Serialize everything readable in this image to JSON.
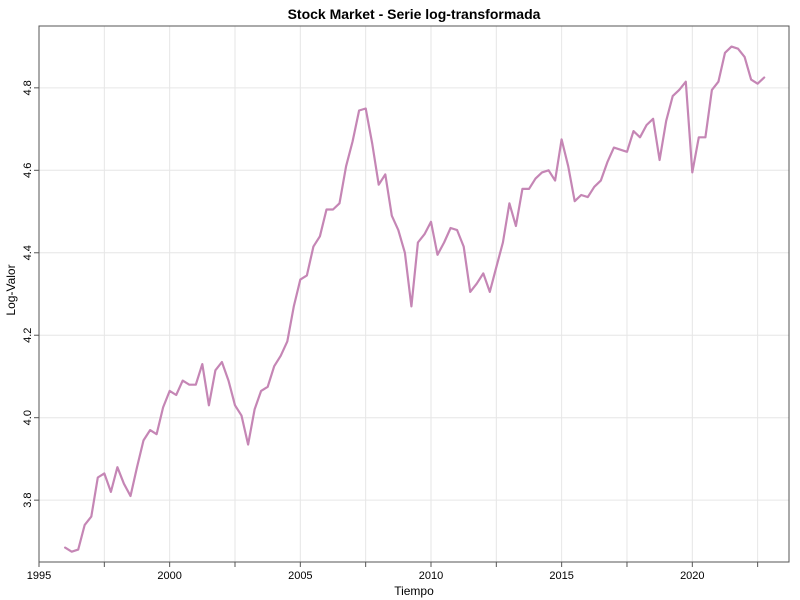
{
  "chart_data": {
    "type": "line",
    "title": "Stock Market - Serie log-transformada",
    "xlabel": "Tiempo",
    "ylabel": "Log-Valor",
    "xlim": [
      1995,
      2023.7
    ],
    "ylim": [
      3.65,
      4.95
    ],
    "x_ticks": [
      1995,
      2000,
      2005,
      2010,
      2015,
      2020
    ],
    "x_tick_labels": [
      "1995",
      "2000",
      "2005",
      "2010",
      "2015",
      "2020"
    ],
    "y_ticks": [
      3.8,
      4.0,
      4.2,
      4.4,
      4.6,
      4.8
    ],
    "y_tick_labels": [
      "3.8",
      "4.0",
      "4.2",
      "4.4",
      "4.6",
      "4.8"
    ],
    "grid": true,
    "color": "#c586b5",
    "series": [
      {
        "x": [
          1996.0,
          1996.25,
          1996.5,
          1996.75,
          1997.0,
          1997.25,
          1997.5,
          1997.75,
          1998.0,
          1998.25,
          1998.5,
          1998.75,
          1999.0,
          1999.25,
          1999.5,
          1999.75,
          2000.0,
          2000.25,
          2000.5,
          2000.75,
          2001.0,
          2001.25,
          2001.5,
          2001.75,
          2002.0,
          2002.25,
          2002.5,
          2002.75,
          2003.0,
          2003.25,
          2003.5,
          2003.75,
          2004.0,
          2004.25,
          2004.5,
          2004.75,
          2005.0,
          2005.25,
          2005.5,
          2005.75,
          2006.0,
          2006.25,
          2006.5,
          2006.75,
          2007.0,
          2007.25,
          2007.5,
          2007.75,
          2008.0,
          2008.25,
          2008.5,
          2008.75,
          2009.0,
          2009.25,
          2009.5,
          2009.75,
          2010.0,
          2010.25,
          2010.5,
          2010.75,
          2011.0,
          2011.25,
          2011.5,
          2011.75,
          2012.0,
          2012.25,
          2012.5,
          2012.75,
          2013.0,
          2013.25,
          2013.5,
          2013.75,
          2014.0,
          2014.25,
          2014.5,
          2014.75,
          2015.0,
          2015.25,
          2015.5,
          2015.75,
          2016.0,
          2016.25,
          2016.5,
          2016.75,
          2017.0,
          2017.25,
          2017.5,
          2017.75,
          2018.0,
          2018.25,
          2018.5,
          2018.75,
          2019.0,
          2019.25,
          2019.5,
          2019.75,
          2020.0,
          2020.25,
          2020.5,
          2020.75,
          2021.0,
          2021.25,
          2021.5,
          2021.75,
          2022.0,
          2022.25,
          2022.5,
          2022.75
        ],
        "values": [
          3.685,
          3.675,
          3.68,
          3.74,
          3.76,
          3.855,
          3.865,
          3.82,
          3.88,
          3.84,
          3.81,
          3.88,
          3.945,
          3.97,
          3.96,
          4.025,
          4.065,
          4.055,
          4.09,
          4.08,
          4.08,
          4.13,
          4.03,
          4.115,
          4.135,
          4.09,
          4.03,
          4.005,
          3.935,
          4.02,
          4.065,
          4.075,
          4.125,
          4.15,
          4.185,
          4.27,
          4.335,
          4.345,
          4.415,
          4.44,
          4.505,
          4.505,
          4.52,
          4.61,
          4.67,
          4.745,
          4.75,
          4.665,
          4.565,
          4.59,
          4.49,
          4.455,
          4.4,
          4.27,
          4.425,
          4.445,
          4.475,
          4.395,
          4.425,
          4.46,
          4.455,
          4.415,
          4.305,
          4.325,
          4.35,
          4.305,
          4.365,
          4.425,
          4.52,
          4.465,
          4.555,
          4.555,
          4.58,
          4.595,
          4.6,
          4.575,
          4.675,
          4.61,
          4.525,
          4.54,
          4.535,
          4.56,
          4.575,
          4.62,
          4.655,
          4.65,
          4.645,
          4.695,
          4.68,
          4.71,
          4.725,
          4.625,
          4.72,
          4.78,
          4.795,
          4.815,
          4.595,
          4.68,
          4.68,
          4.795,
          4.815,
          4.885,
          4.9,
          4.895,
          4.875,
          4.82,
          4.81,
          4.825
        ]
      }
    ]
  }
}
